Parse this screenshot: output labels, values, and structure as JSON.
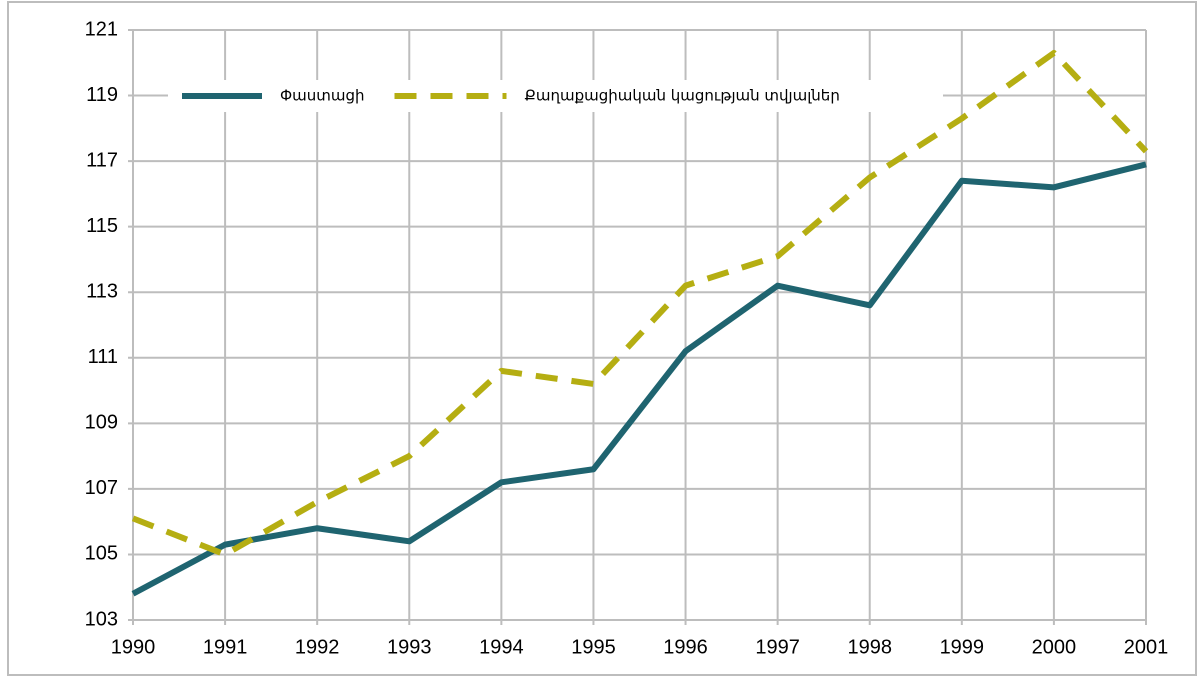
{
  "chart_data": {
    "type": "line",
    "categories": [
      "1990",
      "1991",
      "1992",
      "1993",
      "1994",
      "1995",
      "1996",
      "1997",
      "1998",
      "1999",
      "2000",
      "2001"
    ],
    "series": [
      {
        "name": "Փաստացի",
        "color": "#1f6470",
        "dash": false,
        "values": [
          103.8,
          105.3,
          105.8,
          105.4,
          107.2,
          107.6,
          111.2,
          113.2,
          112.6,
          116.4,
          116.2,
          116.9
        ]
      },
      {
        "name": "Քաղաքացիական կացության տվյալներ",
        "color": "#b5ae12",
        "dash": true,
        "values": [
          106.1,
          105.0,
          106.6,
          108.0,
          110.6,
          110.2,
          113.2,
          114.1,
          116.5,
          118.3,
          120.3,
          117.3
        ]
      }
    ],
    "ylim": [
      103,
      121
    ],
    "yticks": [
      103,
      105,
      107,
      109,
      111,
      113,
      115,
      117,
      119,
      121
    ],
    "grid": true,
    "legend": "top"
  }
}
